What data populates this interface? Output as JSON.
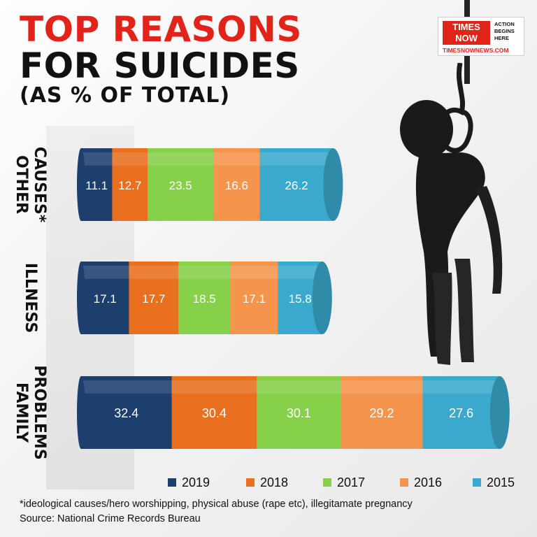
{
  "title": {
    "line1": "TOP REASONS",
    "line2": "FOR SUICIDES",
    "line3": "(AS % OF TOTAL)"
  },
  "logo": {
    "word1": "TIMES",
    "word2": "NOW",
    "tagline": "ACTION BEGINS HERE",
    "url": "TIMESNOWNEWS.COM",
    "color": "#e2231a"
  },
  "footnote": "*ideological causes/hero worshipping, physical abuse (rape etc), illegitamate pregnancy",
  "source": "Source: National Crime Records Bureau",
  "chart_data": {
    "type": "bar",
    "orientation": "horizontal-stacked",
    "title": "TOP REASONS FOR SUICIDES",
    "subtitle": "(AS % OF TOTAL)",
    "categories": [
      "OTHER CAUSES*",
      "ILLNESS",
      "FAMILY PROBLEMS"
    ],
    "category_lines": [
      [
        "OTHER",
        "CAUSES*"
      ],
      [
        "ILLNESS"
      ],
      [
        "FAMILY",
        "PROBLEMS"
      ]
    ],
    "series": [
      {
        "name": "2019",
        "color": "#1d3f6e",
        "values": [
          11.1,
          17.1,
          32.4
        ]
      },
      {
        "name": "2018",
        "color": "#e8701f",
        "values": [
          12.7,
          17.7,
          30.4
        ]
      },
      {
        "name": "2017",
        "color": "#86d04a",
        "values": [
          23.5,
          18.5,
          30.1
        ]
      },
      {
        "name": "2016",
        "color": "#f5954d",
        "values": [
          16.6,
          17.1,
          29.2
        ]
      },
      {
        "name": "2015",
        "color": "#39aacd",
        "values": [
          26.2,
          15.8,
          27.6
        ]
      }
    ],
    "legend_position": "bottom-right",
    "grid": false
  }
}
